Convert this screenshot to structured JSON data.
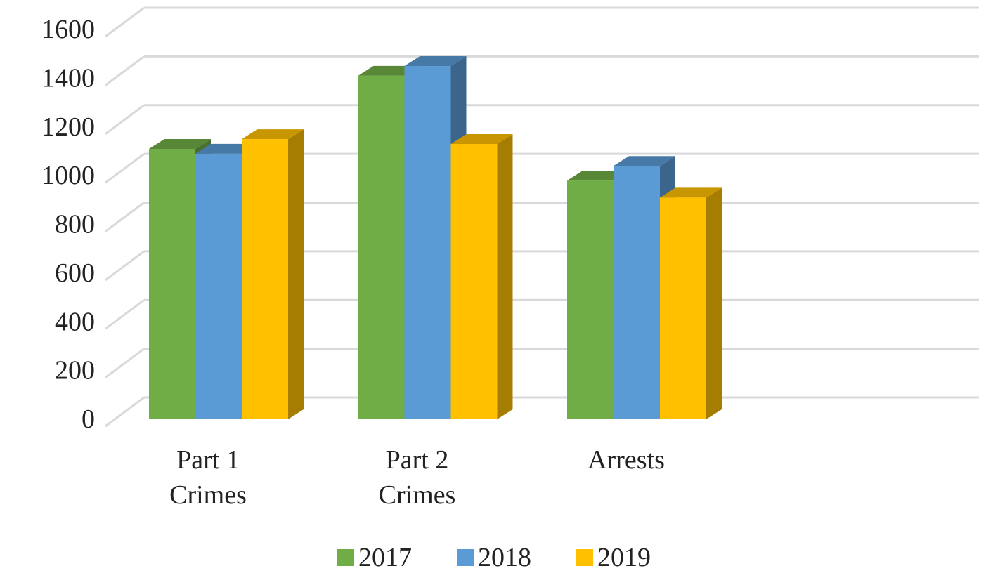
{
  "chart_data": {
    "type": "bar3d",
    "categories": [
      "Part 1 Crimes",
      "Part 2 Crimes",
      "Arrests"
    ],
    "series": [
      {
        "name": "2017",
        "color": "#70ad47",
        "values": [
          1110,
          1410,
          980
        ]
      },
      {
        "name": "2018",
        "color": "#5b9bd5",
        "values": [
          1090,
          1450,
          1040
        ]
      },
      {
        "name": "2019",
        "color": "#ffc000",
        "values": [
          1150,
          1130,
          910
        ]
      }
    ],
    "ylim": [
      0,
      1600
    ],
    "yticks": [
      0,
      200,
      400,
      600,
      800,
      1000,
      1200,
      1400,
      1600
    ],
    "grid": true,
    "legend": "bottom"
  }
}
